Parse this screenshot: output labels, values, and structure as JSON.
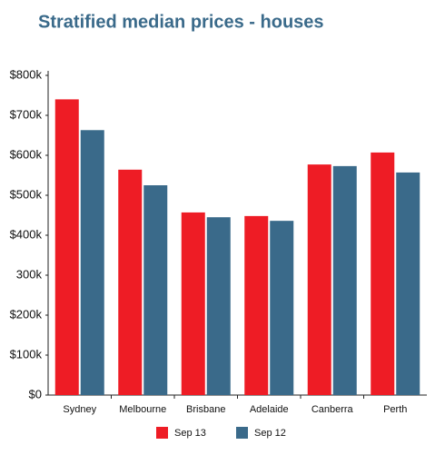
{
  "chart_data": {
    "type": "bar",
    "title": "Stratified median prices - houses",
    "categories": [
      "Sydney",
      "Melbourne",
      "Brisbane",
      "Adelaide",
      "Canberra",
      "Perth"
    ],
    "series": [
      {
        "name": "Sep 13",
        "color": "#ee1c25",
        "values": [
          740000,
          564000,
          457000,
          448000,
          577000,
          607000
        ]
      },
      {
        "name": "Sep 12",
        "color": "#3a6a8a",
        "values": [
          663000,
          525000,
          445000,
          436000,
          573000,
          557000
        ]
      }
    ],
    "ylim": [
      0,
      800000
    ],
    "yticks": [
      {
        "value": 0,
        "label": "$0"
      },
      {
        "value": 100000,
        "label": "$100k"
      },
      {
        "value": 200000,
        "label": "$200k"
      },
      {
        "value": 300000,
        "label": "300k"
      },
      {
        "value": 400000,
        "label": "$400k"
      },
      {
        "value": 500000,
        "label": "$500k"
      },
      {
        "value": 600000,
        "label": "$600k"
      },
      {
        "value": 700000,
        "label": "$700k"
      },
      {
        "value": 800000,
        "label": "$800k"
      }
    ],
    "grid": false
  }
}
